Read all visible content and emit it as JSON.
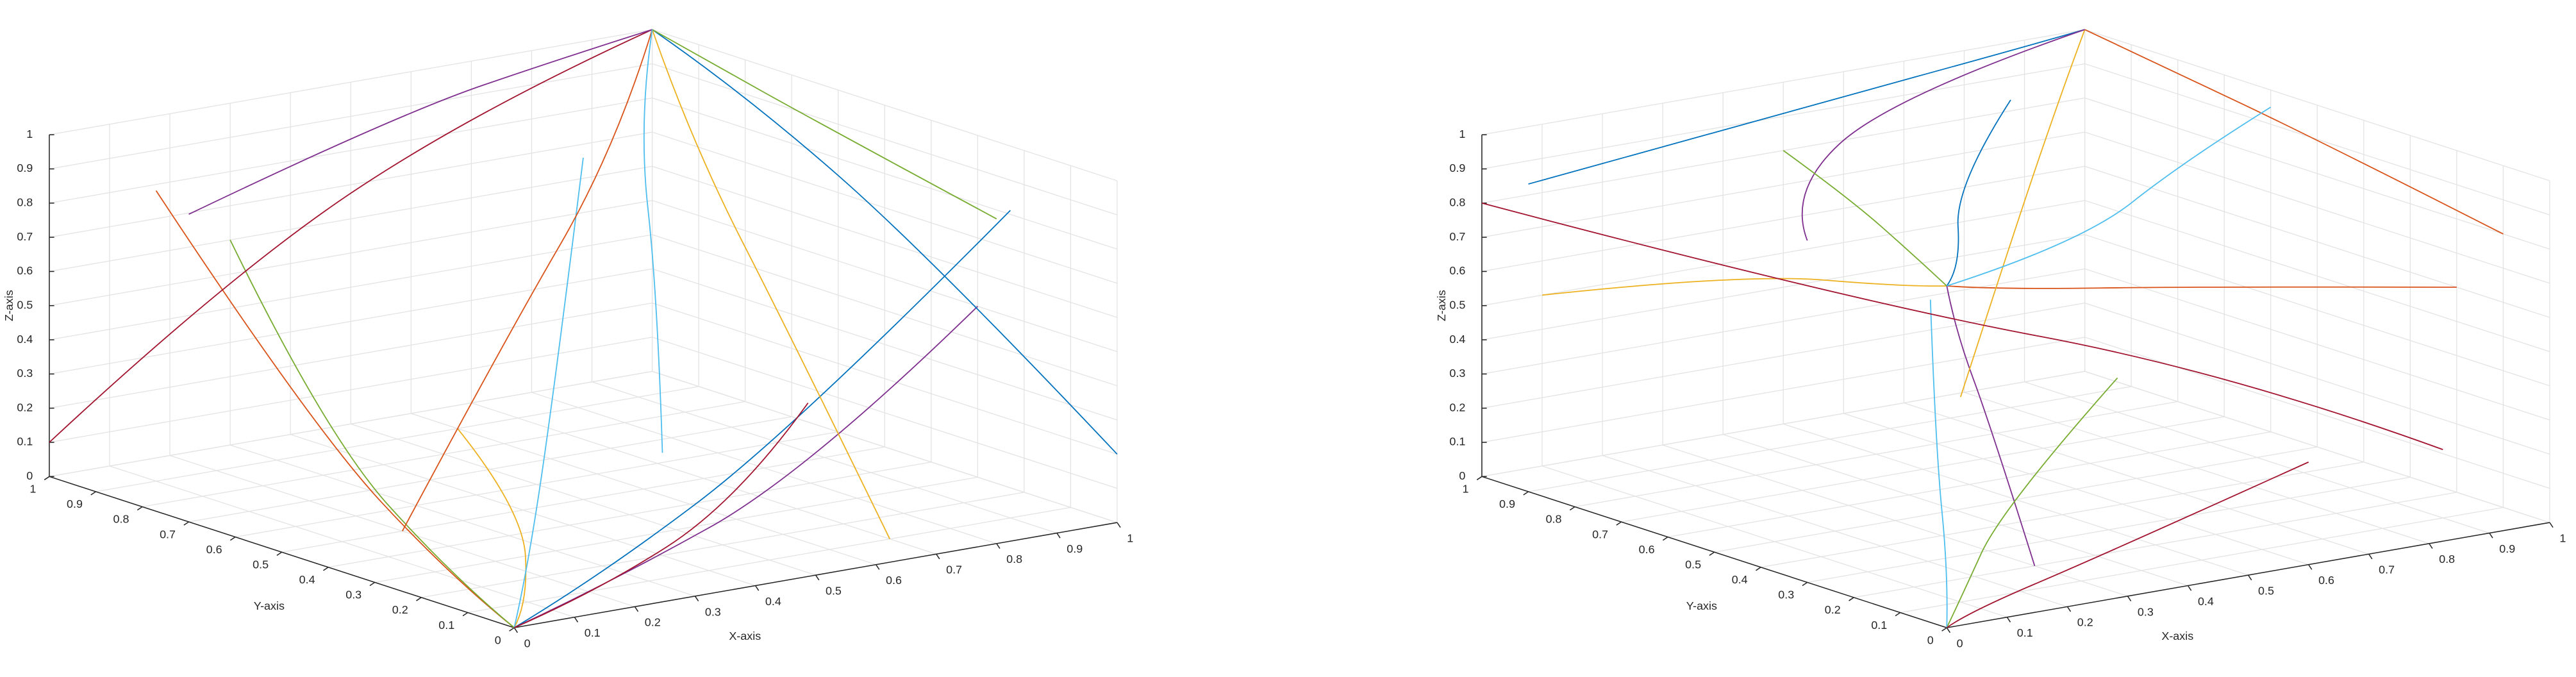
{
  "chart_data": [
    {
      "type": "line3d",
      "xlabel": "X-axis",
      "ylabel": "Y-axis",
      "zlabel": "Z-axis",
      "xlim": [
        0,
        1
      ],
      "ylim": [
        0,
        1
      ],
      "zlim": [
        0,
        1
      ],
      "xticks": [
        0,
        0.1,
        0.2,
        0.3,
        0.4,
        0.5,
        0.6,
        0.7,
        0.8,
        0.9,
        1
      ],
      "yticks": [
        0,
        0.1,
        0.2,
        0.3,
        0.4,
        0.5,
        0.6,
        0.7,
        0.8,
        0.9,
        1
      ],
      "zticks": [
        0,
        0.1,
        0.2,
        0.3,
        0.4,
        0.5,
        0.6,
        0.7,
        0.8,
        0.9,
        1
      ],
      "grid": true,
      "series": [
        {
          "color": "#0072BD",
          "x": [
            0.9,
            0.5,
            0.15,
            0
          ],
          "y": [
            0.1,
            0.05,
            0.01,
            0
          ],
          "z": [
            0.9,
            0.4,
            0.1,
            0
          ]
        },
        {
          "color": "#D95319",
          "x": [
            0.1,
            0.05,
            0.01,
            0
          ],
          "y": [
            0.9,
            0.5,
            0.15,
            0
          ],
          "z": [
            0.85,
            0.35,
            0.08,
            0
          ]
        },
        {
          "color": "#EDB120",
          "x": [
            0.6,
            0.4,
            0.1,
            0
          ],
          "y": [
            0.9,
            0.5,
            0.1,
            0
          ],
          "z": [
            0,
            0,
            0,
            0
          ]
        },
        {
          "color": "#7E2F8E",
          "x": [
            1,
            0.6,
            0.2,
            0
          ],
          "y": [
            0.3,
            0.15,
            0.05,
            0
          ],
          "z": [
            0.5,
            0.2,
            0.05,
            0
          ]
        },
        {
          "color": "#77AC30",
          "x": [
            0.3,
            0.15,
            0.05,
            0
          ],
          "y": [
            1,
            0.6,
            0.2,
            0
          ],
          "z": [
            0.6,
            0.25,
            0.05,
            0
          ]
        },
        {
          "color": "#4DBEEE",
          "x": [
            0.5,
            0.3,
            0.1,
            0
          ],
          "y": [
            0.5,
            0.3,
            0.1,
            0
          ],
          "z": [
            1,
            0.5,
            0.1,
            0
          ]
        },
        {
          "color": "#A2142F",
          "x": [
            0,
            0.3,
            0.7,
            1
          ],
          "y": [
            1,
            1,
            1,
            1
          ],
          "z": [
            0.1,
            0.5,
            0.85,
            1
          ]
        },
        {
          "color": "#0072BD",
          "x": [
            1,
            1,
            1,
            1
          ],
          "y": [
            0,
            0.4,
            0.8,
            1
          ],
          "z": [
            0.2,
            0.6,
            0.9,
            1
          ]
        },
        {
          "color": "#D95319",
          "x": [
            0.2,
            0.6,
            0.9,
            1
          ],
          "y": [
            0.5,
            0.8,
            0.95,
            1
          ],
          "z": [
            0,
            0.3,
            0.7,
            1
          ]
        },
        {
          "color": "#EDB120",
          "x": [
            0.7,
            0.85,
            0.95,
            1
          ],
          "y": [
            0.1,
            0.5,
            0.85,
            1
          ],
          "z": [
            0,
            0.35,
            0.75,
            1
          ]
        },
        {
          "color": "#7E2F8E",
          "x": [
            0,
            0.5,
            0.85,
            1
          ],
          "y": [
            0.7,
            0.9,
            0.98,
            1
          ],
          "z": [
            0.9,
            0.95,
            0.98,
            1
          ]
        },
        {
          "color": "#77AC30",
          "x": [
            0.8,
            0.9,
            0.97,
            1
          ],
          "y": [
            0,
            0.5,
            0.85,
            1
          ],
          "z": [
            0.95,
            0.97,
            0.99,
            1
          ]
        },
        {
          "color": "#4DBEEE",
          "x": [
            0.4,
            0.7,
            0.9,
            1
          ],
          "y": [
            0.2,
            0.6,
            0.9,
            1
          ],
          "z": [
            0.3,
            0.5,
            0.8,
            1
          ]
        },
        {
          "color": "#A2142F",
          "x": [
            0.95,
            0.6,
            0.2,
            0
          ],
          "y": [
            0.6,
            0.3,
            0.08,
            0
          ],
          "z": [
            0.1,
            0.05,
            0.01,
            0
          ]
        }
      ]
    },
    {
      "type": "line3d",
      "xlabel": "X-axis",
      "ylabel": "Y-axis",
      "zlabel": "Z-axis",
      "xlim": [
        0,
        1
      ],
      "ylim": [
        0,
        1
      ],
      "zlim": [
        0,
        1
      ],
      "xticks": [
        0,
        0.1,
        0.2,
        0.3,
        0.4,
        0.5,
        0.6,
        0.7,
        0.8,
        0.9,
        1
      ],
      "yticks": [
        0,
        0.1,
        0.2,
        0.3,
        0.4,
        0.5,
        0.6,
        0.7,
        0.8,
        0.9,
        1
      ],
      "zticks": [
        0,
        0.1,
        0.2,
        0.3,
        0.4,
        0.5,
        0.6,
        0.7,
        0.8,
        0.9,
        1
      ],
      "grid": true,
      "series": [
        {
          "color": "#0072BD",
          "x": [
            0.8,
            0.4,
            0.1,
            0
          ],
          "y": [
            0.9,
            0.5,
            0.1,
            0
          ],
          "z": [
            0.9,
            0.95,
            0.98,
            1
          ]
        },
        {
          "color": "#D95319",
          "x": [
            1,
            0.5,
            0.1,
            0
          ],
          "y": [
            0.2,
            0.1,
            0.02,
            0
          ],
          "z": [
            0.6,
            0.8,
            0.95,
            1
          ]
        },
        {
          "color": "#EDB120",
          "x": [
            0.1,
            0.05,
            0.01,
            0
          ],
          "y": [
            1,
            0.5,
            0.1,
            0
          ],
          "z": [
            0.5,
            0.8,
            0.95,
            1
          ]
        },
        {
          "color": "#7E2F8E",
          "x": [
            0.3,
            0.15,
            0.03,
            0
          ],
          "y": [
            0.2,
            0.1,
            0.02,
            0
          ],
          "z": [
            0,
            0.5,
            0.85,
            1
          ]
        },
        {
          "color": "#77AC30",
          "x": [
            0.9,
            0.4,
            0.1,
            0
          ],
          "y": [
            0.8,
            0.4,
            0.1,
            0
          ],
          "z": [
            0.1,
            0.05,
            0.01,
            0
          ]
        },
        {
          "color": "#4DBEEE",
          "x": [
            0.05,
            0.02,
            0.01,
            0
          ],
          "y": [
            0.1,
            0.05,
            0.01,
            0
          ],
          "z": [
            0.9,
            0.5,
            0.15,
            0
          ]
        },
        {
          "color": "#A2142F",
          "x": [
            0.6,
            0.3,
            0.05,
            0
          ],
          "y": [
            0,
            0.05,
            0.02,
            0
          ],
          "z": [
            0.3,
            0.1,
            0.02,
            0
          ]
        },
        {
          "color": "#0072BD",
          "x": [
            0,
            0.5,
            0.9,
            1
          ],
          "y": [
            0.9,
            0.95,
            1,
            1
          ],
          "z": [
            0.9,
            0.95,
            0.98,
            1
          ]
        },
        {
          "color": "#D95319",
          "x": [
            1,
            1,
            1,
            1
          ],
          "y": [
            0.1,
            0.5,
            0.85,
            1
          ],
          "z": [
            0.8,
            0.9,
            0.97,
            1
          ]
        },
        {
          "color": "#EDB120",
          "x": [
            0.1,
            0.5,
            0.85,
            1
          ],
          "y": [
            0.1,
            0.5,
            0.85,
            1
          ],
          "z": [
            0.6,
            0.8,
            0.95,
            1
          ]
        },
        {
          "color": "#7E2F8E",
          "x": [
            0,
            0.2,
            0.6,
            1
          ],
          "y": [
            0.3,
            0.6,
            0.9,
            1
          ],
          "z": [
            1,
            0.95,
            0.97,
            1
          ]
        },
        {
          "color": "#77AC30",
          "x": [
            0.5,
            0.3,
            0.1,
            0
          ],
          "y": [
            1,
            0.6,
            0.2,
            0
          ],
          "z": [
            0.8,
            0.9,
            0.97,
            1
          ]
        },
        {
          "color": "#4DBEEE",
          "x": [
            1,
            0.7,
            0.3,
            0
          ],
          "y": [
            0.6,
            0.4,
            0.1,
            0
          ],
          "z": [
            0.95,
            0.97,
            0.99,
            1
          ]
        },
        {
          "color": "#A2142F",
          "x": [
            0.9,
            0.7,
            0.3,
            0
          ],
          "y": [
            0.1,
            0.3,
            0.6,
            1
          ],
          "z": [
            0.2,
            0.4,
            0.6,
            0.8
          ]
        }
      ]
    }
  ]
}
